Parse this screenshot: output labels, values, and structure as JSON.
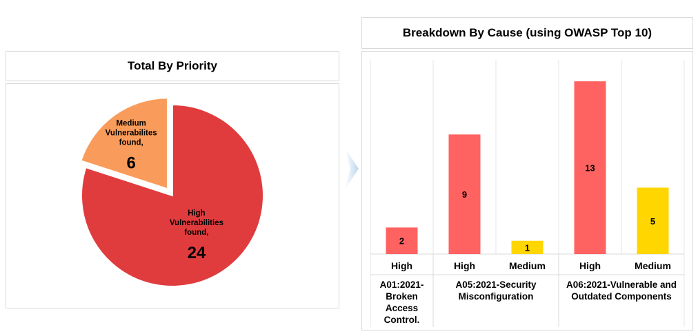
{
  "pie_panel": {
    "title": "Total By Priority"
  },
  "bar_panel": {
    "title": "Breakdown By Cause (using OWASP Top 10)"
  },
  "chart_data": [
    {
      "type": "pie",
      "title": "Total By Priority",
      "slices": [
        {
          "label_lines": [
            "High",
            "Vulnerabilities",
            "found,"
          ],
          "value": 24,
          "color": "#E03C3E"
        },
        {
          "label_lines": [
            "Medium",
            "Vulnerabilites",
            "found,"
          ],
          "value": 6,
          "color": "#F99C5B"
        }
      ]
    },
    {
      "type": "bar",
      "title": "Breakdown By Cause (using OWASP Top 10)",
      "groups": [
        {
          "label_lines": [
            "A01:2021-",
            "Broken",
            "Access",
            "Control."
          ],
          "bars": [
            {
              "category": "High",
              "value": 2,
              "color": "#FF6361"
            }
          ]
        },
        {
          "label_lines": [
            "A05:2021-Security",
            "Misconfiguration"
          ],
          "bars": [
            {
              "category": "High",
              "value": 9,
              "color": "#FF6361"
            },
            {
              "category": "Medium",
              "value": 1,
              "color": "#FFD600"
            }
          ]
        },
        {
          "label_lines": [
            "A06:2021-Vulnerable and",
            "Outdated Components"
          ],
          "bars": [
            {
              "category": "High",
              "value": 13,
              "color": "#FF6361"
            },
            {
              "category": "Medium",
              "value": 5,
              "color": "#FFD600"
            }
          ]
        }
      ]
    }
  ]
}
